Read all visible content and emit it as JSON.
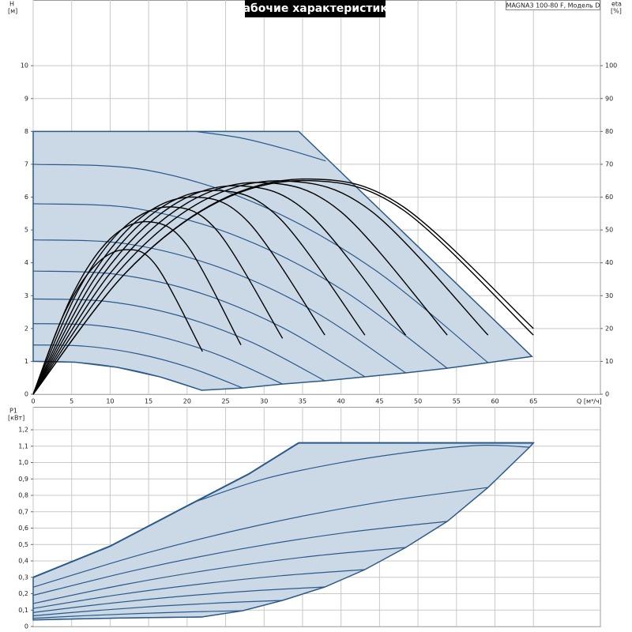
{
  "chart_data": [
    {
      "type": "line",
      "title": "Рабочие характеристики",
      "annotation": "MAGNA3 100-80 F, Модель D",
      "y_label": "H",
      "y_unit": "[м]",
      "y2_label": "eta",
      "y2_unit": "[%]",
      "x_label": "Q [м³/ч]",
      "xlim": [
        0,
        73.7
      ],
      "ylim": [
        0,
        12
      ],
      "y2lim": [
        0,
        120
      ],
      "xticks": [
        0,
        5,
        10,
        15,
        20,
        25,
        30,
        35,
        40,
        45,
        50,
        55,
        60,
        65
      ],
      "yticks": [
        0,
        1,
        2,
        3,
        4,
        5,
        6,
        7,
        8,
        9,
        10
      ],
      "y2ticks": [
        0,
        10,
        20,
        30,
        40,
        50,
        60,
        70,
        80,
        90,
        100
      ],
      "grid": true,
      "area": {
        "color": "#cbd9e6",
        "x": [
          0,
          34.5,
          64.8,
          59.1,
          53.8,
          48.4,
          43.1,
          37.9,
          32.4,
          27.2,
          21.9,
          16.4,
          10.95,
          5.5,
          0
        ],
        "values": [
          8,
          8,
          1.15,
          0.96,
          0.79,
          0.65,
          0.53,
          0.41,
          0.31,
          0.19,
          0.12,
          0.533,
          0.818,
          0.973,
          1
        ]
      },
      "series": [
        {
          "color": "#2b5a8a",
          "x": [
            0,
            5.5,
            10.95,
            16.4,
            21.9
          ],
          "values": [
            1,
            0.973,
            0.818,
            0.533,
            0.12
          ]
        },
        {
          "color": "#2b5a8a",
          "x": [
            0,
            6.8,
            13.6,
            20.4,
            27.2
          ],
          "values": [
            1.5,
            1.46,
            1.23,
            0.805,
            0.19
          ]
        },
        {
          "color": "#2b5a8a",
          "x": [
            0,
            8.1,
            16.2,
            24.3,
            32.4
          ],
          "values": [
            2.15,
            2.095,
            1.77,
            1.175,
            0.31
          ]
        },
        {
          "color": "#2b5a8a",
          "x": [
            0,
            9.5,
            18.95,
            28.4,
            37.9
          ],
          "values": [
            2.9,
            2.826,
            2.39,
            1.58,
            0.41
          ]
        },
        {
          "color": "#2b5a8a",
          "x": [
            0,
            10.8,
            21.55,
            32.3,
            43.1
          ],
          "values": [
            3.75,
            3.65,
            3.09,
            2.04,
            0.53
          ]
        },
        {
          "color": "#2b5a8a",
          "x": [
            0,
            12.1,
            24.2,
            36.3,
            48.4
          ],
          "values": [
            4.7,
            4.58,
            3.86,
            2.55,
            0.65
          ]
        },
        {
          "color": "#2b5a8a",
          "x": [
            0,
            13.45,
            26.9,
            40.35,
            53.8
          ],
          "values": [
            5.8,
            5.65,
            4.77,
            3.15,
            0.79
          ]
        },
        {
          "color": "#2b5a8a",
          "x": [
            0,
            14.8,
            29.55,
            44.3,
            59.1
          ],
          "values": [
            7,
            6.82,
            5.75,
            3.8,
            0.96
          ]
        },
        {
          "color": "#2b5a8a",
          "x": [
            21,
            27,
            33,
            38
          ],
          "values": [
            8,
            7.8,
            7.45,
            7.1
          ]
        },
        {
          "color": "#000000",
          "axis": "y2",
          "x": [
            0,
            4,
            8,
            12,
            16,
            22
          ],
          "values": [
            0,
            24.4,
            39.1,
            44,
            39.1,
            13
          ]
        },
        {
          "color": "#000000",
          "axis": "y2",
          "x": [
            0,
            5,
            10,
            15,
            20,
            27
          ],
          "values": [
            0,
            29.8,
            47.3,
            52.5,
            45.3,
            15
          ]
        },
        {
          "color": "#000000",
          "axis": "y2",
          "x": [
            0,
            6,
            12,
            18,
            24,
            32.4
          ],
          "values": [
            0,
            32.3,
            51.2,
            57,
            49.5,
            17
          ]
        },
        {
          "color": "#000000",
          "axis": "y2",
          "x": [
            0,
            7,
            14,
            21,
            28,
            37.9
          ],
          "values": [
            0,
            33.8,
            53.8,
            60,
            52.3,
            18
          ]
        },
        {
          "color": "#000000",
          "axis": "y2",
          "x": [
            0,
            8,
            16,
            24,
            32,
            43.1
          ],
          "values": [
            0,
            35.2,
            55.8,
            62,
            53.6,
            18
          ]
        },
        {
          "color": "#000000",
          "axis": "y2",
          "x": [
            0,
            9,
            18,
            27,
            36,
            48.4
          ],
          "values": [
            0,
            36.2,
            57.3,
            63.4,
            54.6,
            18
          ]
        },
        {
          "color": "#000000",
          "axis": "y2",
          "x": [
            0,
            10,
            20,
            30,
            40,
            53.8
          ],
          "values": [
            0,
            36.8,
            58.2,
            64.4,
            55.5,
            18
          ]
        },
        {
          "color": "#000000",
          "axis": "y2",
          "x": [
            0,
            11,
            22,
            33,
            44,
            59.1
          ],
          "values": [
            0,
            37.1,
            58.8,
            64.9,
            55.6,
            18
          ]
        },
        {
          "color": "#000000",
          "axis": "y2",
          "x": [
            0,
            12,
            24,
            36,
            48,
            65
          ],
          "values": [
            0,
            36.9,
            58.5,
            65,
            56.2,
            18
          ]
        },
        {
          "color": "#000000",
          "axis": "y2",
          "x": [
            0,
            12,
            24,
            36,
            48,
            65
          ],
          "values": [
            0,
            36.9,
            58.7,
            65.5,
            57.2,
            20
          ]
        }
      ]
    },
    {
      "type": "line",
      "y_label": "P1",
      "y_unit": "[кВт]",
      "xlim": [
        0,
        73.7
      ],
      "ylim": [
        0,
        1.34
      ],
      "xticks": [
        0,
        5,
        10,
        15,
        20,
        25,
        30,
        35,
        40,
        45,
        50,
        55,
        60,
        65
      ],
      "xtick_labels": false,
      "yticks": [
        0,
        {
          "value": 0.1,
          "label": "0,1"
        },
        {
          "value": 0.2,
          "label": "0,2"
        },
        {
          "value": 0.3,
          "label": "0,3"
        },
        {
          "value": 0.4,
          "label": "0,4"
        },
        {
          "value": 0.5,
          "label": "0,5"
        },
        {
          "value": 0.6,
          "label": "0,6"
        },
        {
          "value": 0.7,
          "label": "0,7"
        },
        {
          "value": 0.8,
          "label": "0,8"
        },
        {
          "value": 0.9,
          "label": "0,9"
        },
        {
          "value": 1.0,
          "label": "1,0"
        },
        {
          "value": 1.1,
          "label": "1,1"
        },
        {
          "value": 1.2,
          "label": "1,2"
        }
      ],
      "grid": true,
      "area": {
        "color": "#cbd9e6",
        "x": [
          0,
          10,
          21,
          28,
          34.5,
          65,
          64.5,
          59.1,
          53.8,
          48.4,
          43.1,
          37.9,
          32.4,
          27.2,
          21.9,
          16.4,
          10.95,
          5.5,
          0
        ],
        "values": [
          0.3,
          0.49,
          0.76,
          0.93,
          1.12,
          1.12,
          1.094,
          0.848,
          0.641,
          0.482,
          0.347,
          0.241,
          0.159,
          0.096,
          0.058,
          0.055,
          0.051,
          0.046,
          0.04
        ]
      },
      "outline": {
        "color": "#2b5a8a",
        "x": [
          0,
          10,
          21,
          28,
          34.5,
          65
        ],
        "values": [
          0.3,
          0.49,
          0.76,
          0.93,
          1.12,
          1.12
        ]
      },
      "series": [
        {
          "color": "#2b5a8a",
          "x": [
            0,
            5.5,
            10.95,
            16.4,
            21.9
          ],
          "values": [
            0.04,
            0.046,
            0.051,
            0.055,
            0.058
          ]
        },
        {
          "color": "#2b5a8a",
          "x": [
            0,
            6.8,
            13.6,
            20.4,
            27.2
          ],
          "values": [
            0.05,
            0.066,
            0.079,
            0.089,
            0.096
          ]
        },
        {
          "color": "#2b5a8a",
          "x": [
            0,
            8.1,
            16.2,
            24.3,
            32.4
          ],
          "values": [
            0.065,
            0.097,
            0.124,
            0.144,
            0.159
          ]
        },
        {
          "color": "#2b5a8a",
          "x": [
            0,
            9.5,
            18.95,
            28.4,
            37.9
          ],
          "values": [
            0.085,
            0.139,
            0.183,
            0.217,
            0.241
          ]
        },
        {
          "color": "#2b5a8a",
          "x": [
            0,
            10.8,
            21.55,
            32.3,
            43.1
          ],
          "values": [
            0.11,
            0.192,
            0.258,
            0.31,
            0.347
          ]
        },
        {
          "color": "#2b5a8a",
          "x": [
            0,
            12.1,
            24.2,
            36.3,
            48.4
          ],
          "values": [
            0.14,
            0.258,
            0.354,
            0.429,
            0.482
          ]
        },
        {
          "color": "#2b5a8a",
          "x": [
            0,
            13.45,
            26.9,
            40.35,
            53.8
          ],
          "values": [
            0.19,
            0.345,
            0.472,
            0.571,
            0.641
          ]
        },
        {
          "color": "#2b5a8a",
          "x": [
            0,
            14.8,
            29.55,
            44.3,
            59.1
          ],
          "values": [
            0.24,
            0.449,
            0.62,
            0.753,
            0.848
          ]
        },
        {
          "color": "#2b5a8a",
          "x": [
            21,
            30,
            40,
            50,
            58,
            64.5
          ],
          "values": [
            0.76,
            0.9,
            1.0,
            1.07,
            1.105,
            1.094
          ]
        }
      ]
    }
  ]
}
